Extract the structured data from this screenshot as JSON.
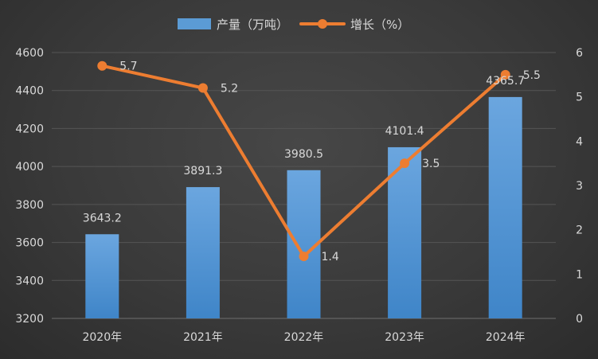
{
  "chart_data": {
    "type": "bar+line",
    "categories": [
      "2020年",
      "2021年",
      "2022年",
      "2023年",
      "2024年"
    ],
    "series": [
      {
        "name": "产量（万吨）",
        "type": "bar",
        "axis": "left",
        "values": [
          3643.2,
          3891.3,
          3980.5,
          4101.4,
          4365.7
        ],
        "labels": [
          "3643.2",
          "3891.3",
          "3980.5",
          "4101.4",
          "4365.7"
        ]
      },
      {
        "name": "增长（%）",
        "type": "line",
        "axis": "right",
        "values": [
          5.7,
          5.2,
          1.4,
          3.5,
          5.5
        ],
        "labels": [
          "5.7",
          "5.2",
          "1.4",
          "3.5",
          "5.5"
        ]
      }
    ],
    "y_left": {
      "min": 3200,
      "max": 4600,
      "ticks": [
        "3200",
        "3400",
        "3600",
        "3800",
        "4000",
        "4200",
        "4400",
        "4600"
      ]
    },
    "y_right": {
      "min": 0,
      "max": 6,
      "ticks": [
        "0",
        "1",
        "2",
        "3",
        "4",
        "5",
        "6"
      ]
    },
    "legend_position": "top-center",
    "grid": true,
    "colors": {
      "bar": "#5b9bd5",
      "line": "#ed7d31",
      "grid": "#555555",
      "text": "#d9d9d9"
    }
  }
}
